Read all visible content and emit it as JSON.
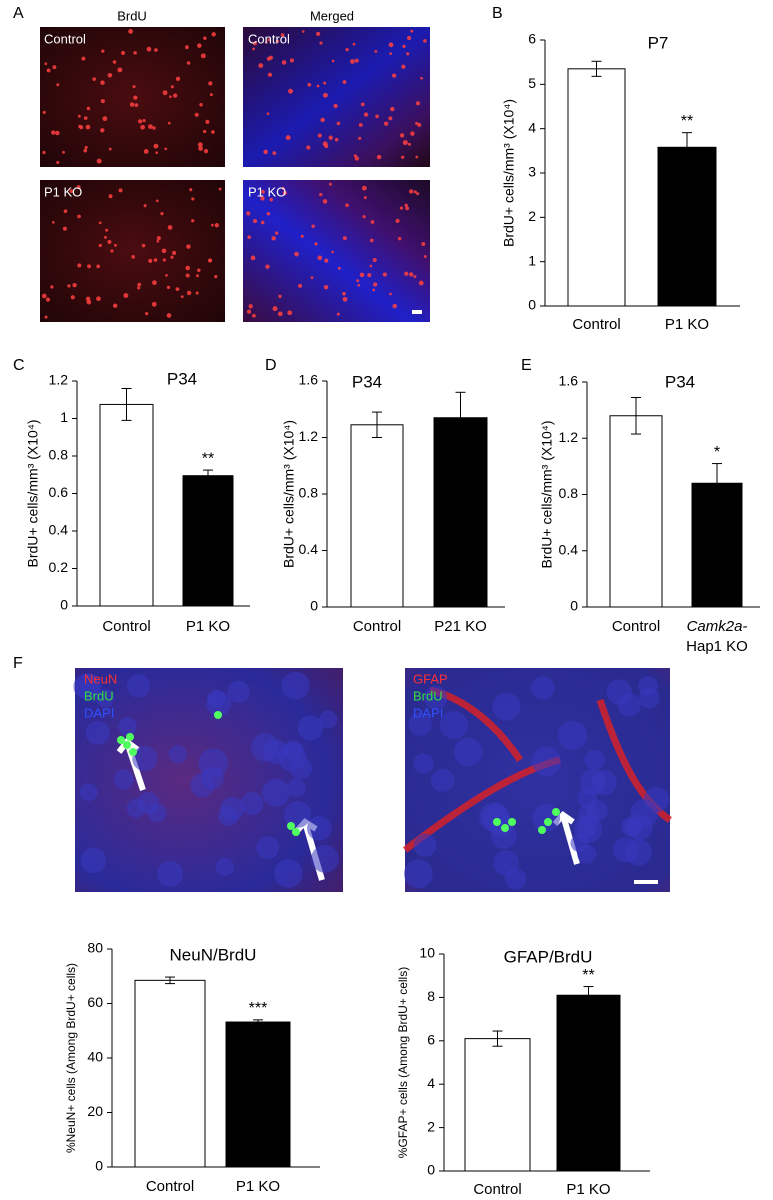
{
  "panel_labels": [
    "A",
    "B",
    "C",
    "D",
    "E",
    "F"
  ],
  "image_panels": {
    "A": {
      "columns": [
        "BrdU",
        "Merged"
      ],
      "rows": [
        "Control",
        "P1 KO"
      ]
    },
    "F": {
      "left": [
        "NeuN",
        "BrdU",
        "DAPI"
      ],
      "right": [
        "GFAP",
        "BrdU",
        "DAPI"
      ]
    }
  },
  "chart_data": [
    {
      "type": "bar",
      "title": "P7",
      "y_label": "BrdU+ cells/mm³ (X10⁴)",
      "categories": [
        "Control",
        "P1 KO"
      ],
      "values": [
        5.35,
        3.58
      ],
      "errors": [
        0.17,
        0.33
      ],
      "colors": [
        "#ffffff",
        "#000000"
      ],
      "ylim": [
        0,
        6
      ],
      "yticks": [
        0,
        1,
        2,
        3,
        4,
        5,
        6
      ],
      "annotations": [
        {
          "text": "**",
          "category": "P1 KO"
        }
      ]
    },
    {
      "type": "bar",
      "title": "P34",
      "y_label": "BrdU+ cells/mm³ (X10⁴)",
      "categories": [
        "Control",
        "P1 KO"
      ],
      "values": [
        1.075,
        0.695
      ],
      "errors": [
        0.085,
        0.03
      ],
      "colors": [
        "#ffffff",
        "#000000"
      ],
      "ylim": [
        0,
        1.2
      ],
      "yticks": [
        0,
        0.2,
        0.4,
        0.6,
        0.8,
        1,
        1.2
      ],
      "annotations": [
        {
          "text": "**",
          "category": "P1 KO"
        }
      ]
    },
    {
      "type": "bar",
      "title": "P34",
      "y_label": "BrdU+ cells/mm³ (X10⁴)",
      "categories": [
        "Control",
        "P21 KO"
      ],
      "values": [
        1.29,
        1.34
      ],
      "errors": [
        0.09,
        0.18
      ],
      "colors": [
        "#ffffff",
        "#000000"
      ],
      "ylim": [
        0,
        1.6
      ],
      "yticks": [
        0,
        0.4,
        0.8,
        1.2,
        1.6
      ]
    },
    {
      "type": "bar",
      "title": "P34",
      "y_label": "BrdU+ cells/mm³ (X10⁴)",
      "categories": [
        "Control",
        "Camk2a-Hap1 KO"
      ],
      "values": [
        1.36,
        0.88
      ],
      "errors": [
        0.13,
        0.14
      ],
      "colors": [
        "#ffffff",
        "#000000"
      ],
      "ylim": [
        0,
        1.6
      ],
      "yticks": [
        0,
        0.4,
        0.8,
        1.2,
        1.6
      ],
      "annotations": [
        {
          "text": "*",
          "category": "Camk2a-Hap1 KO"
        }
      ]
    },
    {
      "type": "bar",
      "title": "NeuN/BrdU",
      "y_label": "%NeuN+ cells (Among BrdU+ cells)",
      "categories": [
        "Control",
        "P1 KO"
      ],
      "values": [
        68.5,
        53.2
      ],
      "errors": [
        1.2,
        0.8
      ],
      "colors": [
        "#ffffff",
        "#000000"
      ],
      "ylim": [
        0,
        80
      ],
      "yticks": [
        0,
        20,
        40,
        60,
        80
      ],
      "annotations": [
        {
          "text": "***",
          "category": "P1 KO"
        }
      ]
    },
    {
      "type": "bar",
      "title": "GFAP/BrdU",
      "y_label": "%GFAP+ cells (Among BrdU+ cells)",
      "categories": [
        "Control",
        "P1 KO"
      ],
      "values": [
        6.1,
        8.1
      ],
      "errors": [
        0.35,
        0.4
      ],
      "colors": [
        "#ffffff",
        "#000000"
      ],
      "ylim": [
        0,
        10
      ],
      "yticks": [
        0,
        2,
        4,
        6,
        8,
        10
      ],
      "annotations": [
        {
          "text": "**",
          "category": "P1 KO"
        }
      ]
    }
  ]
}
